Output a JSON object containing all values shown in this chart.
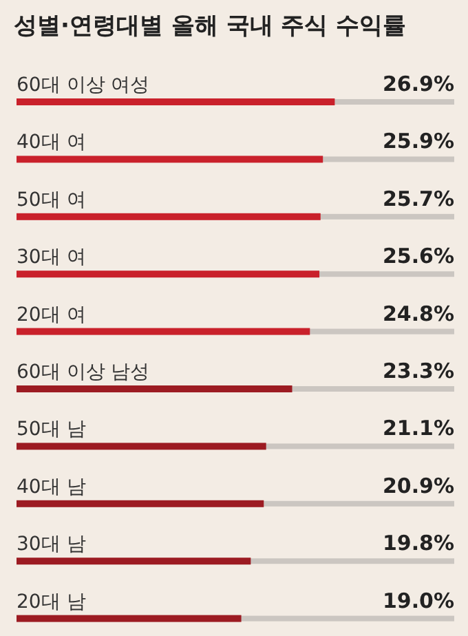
{
  "chart_data": {
    "type": "bar",
    "orientation": "horizontal",
    "title": "성별·연령대별 올해 국내 주식 수익률",
    "categories": [
      "60대 이상 여성",
      "40대 여",
      "50대 여",
      "30대 여",
      "20대 여",
      "60대 이상 남성",
      "50대 남",
      "40대 남",
      "30대 남",
      "20대 남"
    ],
    "values": [
      26.9,
      25.9,
      25.7,
      25.6,
      24.8,
      23.3,
      21.1,
      20.9,
      19.8,
      19.0
    ],
    "colors": [
      "#c9212b",
      "#c9212b",
      "#c9212b",
      "#c9212b",
      "#c9212b",
      "#9c1b22",
      "#9c1b22",
      "#9c1b22",
      "#9c1b22",
      "#9c1b22"
    ],
    "value_labels": [
      "26.9%",
      "25.9%",
      "25.7%",
      "25.6%",
      "24.8%",
      "23.3%",
      "21.1%",
      "20.9%",
      "19.8%",
      "19.0%"
    ],
    "xlim": [
      0,
      37
    ]
  }
}
